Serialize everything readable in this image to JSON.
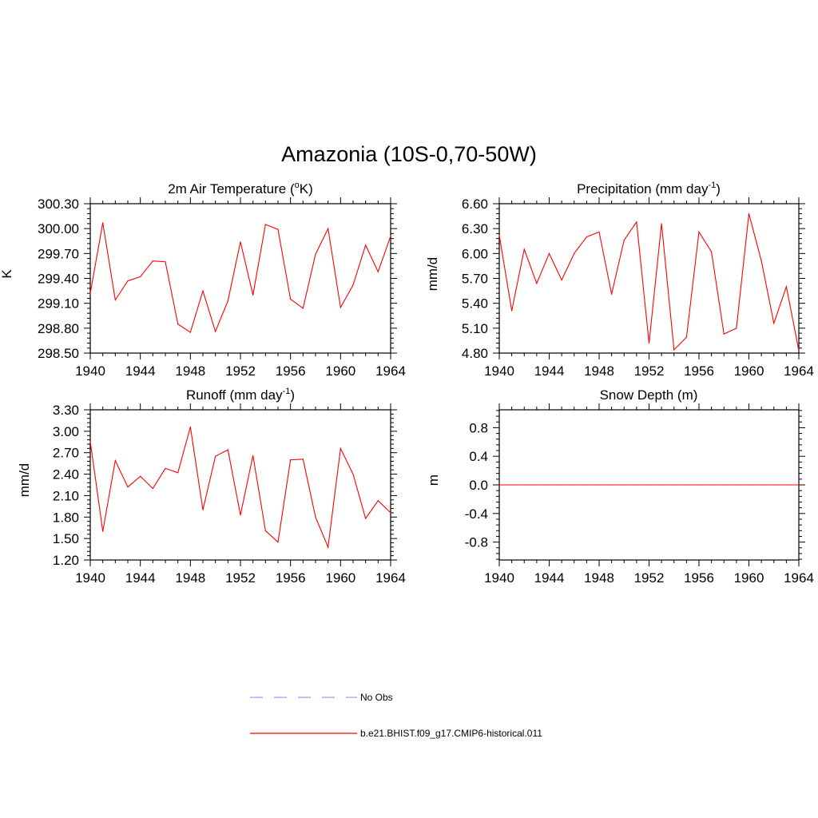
{
  "page_title": "Amazonia (10S-0,70-50W)",
  "colors": {
    "model_line": "#ff0000",
    "obs_line": "#9a9aff",
    "axis": "#000000"
  },
  "legend": [
    {
      "label": "No Obs",
      "style": "dashed",
      "color": "#9a9aff"
    },
    {
      "label": "b.e21.BHIST.f09_g17.CMIP6-historical.011",
      "style": "solid",
      "color": "#ff0000"
    }
  ],
  "chart_data": [
    {
      "type": "line",
      "title": "2m Air Temperature (",
      "title_sup": "o",
      "title_tail": "K)",
      "ylabel": "K",
      "xlim": [
        1940,
        1964
      ],
      "ylim": [
        298.5,
        300.3
      ],
      "xticks": [
        "1940",
        "1944",
        "1948",
        "1952",
        "1956",
        "1960",
        "1964"
      ],
      "yticks": [
        "298.50",
        "298.80",
        "299.10",
        "299.40",
        "299.70",
        "300.00",
        "300.30"
      ],
      "series": [
        {
          "x": [
            1940,
            1941,
            1942,
            1943,
            1944,
            1945,
            1946,
            1947,
            1948,
            1949,
            1950,
            1951,
            1952,
            1953,
            1954,
            1955,
            1956,
            1957,
            1958,
            1959,
            1960,
            1961,
            1962,
            1963,
            1964
          ],
          "values": [
            299.22,
            300.07,
            299.14,
            299.37,
            299.42,
            299.61,
            299.6,
            298.85,
            298.75,
            299.25,
            298.76,
            299.13,
            299.84,
            299.2,
            300.05,
            299.99,
            299.15,
            299.04,
            299.69,
            300.0,
            299.05,
            299.32,
            299.8,
            299.48,
            299.91
          ]
        }
      ]
    },
    {
      "type": "line",
      "title": "Precipitation (mm day",
      "title_sup": "-1",
      "title_tail": ")",
      "ylabel": "mm/d",
      "xlim": [
        1940,
        1964
      ],
      "ylim": [
        4.8,
        6.6
      ],
      "xticks": [
        "1940",
        "1944",
        "1948",
        "1952",
        "1956",
        "1960",
        "1964"
      ],
      "yticks": [
        "4.80",
        "5.10",
        "5.40",
        "5.70",
        "6.00",
        "6.30",
        "6.60"
      ],
      "series": [
        {
          "x": [
            1940,
            1941,
            1942,
            1943,
            1944,
            1945,
            1946,
            1947,
            1948,
            1949,
            1950,
            1951,
            1952,
            1953,
            1954,
            1955,
            1956,
            1957,
            1958,
            1959,
            1960,
            1961,
            1962,
            1963,
            1964
          ],
          "values": [
            6.22,
            5.31,
            6.05,
            5.64,
            6.0,
            5.68,
            6.0,
            6.2,
            6.26,
            5.51,
            6.16,
            6.38,
            4.92,
            6.36,
            4.84,
            4.99,
            6.26,
            6.02,
            5.03,
            5.1,
            6.48,
            5.91,
            5.16,
            5.6,
            4.83
          ]
        }
      ]
    },
    {
      "type": "line",
      "title": "Runoff (mm day",
      "title_sup": "-1",
      "title_tail": ")",
      "ylabel": "mm/d",
      "xlim": [
        1940,
        1964
      ],
      "ylim": [
        1.2,
        3.3
      ],
      "xticks": [
        "1940",
        "1944",
        "1948",
        "1952",
        "1956",
        "1960",
        "1964"
      ],
      "yticks": [
        "1.20",
        "1.50",
        "1.80",
        "2.10",
        "2.40",
        "2.70",
        "3.00",
        "3.30"
      ],
      "series": [
        {
          "x": [
            1940,
            1941,
            1942,
            1943,
            1944,
            1945,
            1946,
            1947,
            1948,
            1949,
            1950,
            1951,
            1952,
            1953,
            1954,
            1955,
            1956,
            1957,
            1958,
            1959,
            1960,
            1961,
            1962,
            1963,
            1964
          ],
          "values": [
            2.86,
            1.6,
            2.59,
            2.22,
            2.37,
            2.2,
            2.48,
            2.42,
            3.06,
            1.9,
            2.65,
            2.74,
            1.83,
            2.66,
            1.61,
            1.45,
            2.6,
            2.61,
            1.8,
            1.38,
            2.76,
            2.4,
            1.78,
            2.03,
            1.86
          ]
        }
      ]
    },
    {
      "type": "line",
      "title": "Snow Depth (m)",
      "title_sup": "",
      "title_tail": "",
      "ylabel": "m",
      "xlim": [
        1940,
        1964
      ],
      "ylim": [
        -1.05,
        1.05
      ],
      "xticks": [
        "1940",
        "1944",
        "1948",
        "1952",
        "1956",
        "1960",
        "1964"
      ],
      "yticks": [
        "-0.8",
        "-0.4",
        "0.0",
        "0.4",
        "0.8"
      ],
      "series": [
        {
          "x": [
            1940,
            1941,
            1942,
            1943,
            1944,
            1945,
            1946,
            1947,
            1948,
            1949,
            1950,
            1951,
            1952,
            1953,
            1954,
            1955,
            1956,
            1957,
            1958,
            1959,
            1960,
            1961,
            1962,
            1963,
            1964
          ],
          "values": [
            0,
            0,
            0,
            0,
            0,
            0,
            0,
            0,
            0,
            0,
            0,
            0,
            0,
            0,
            0,
            0,
            0,
            0,
            0,
            0,
            0,
            0,
            0,
            0,
            0
          ]
        }
      ]
    }
  ]
}
